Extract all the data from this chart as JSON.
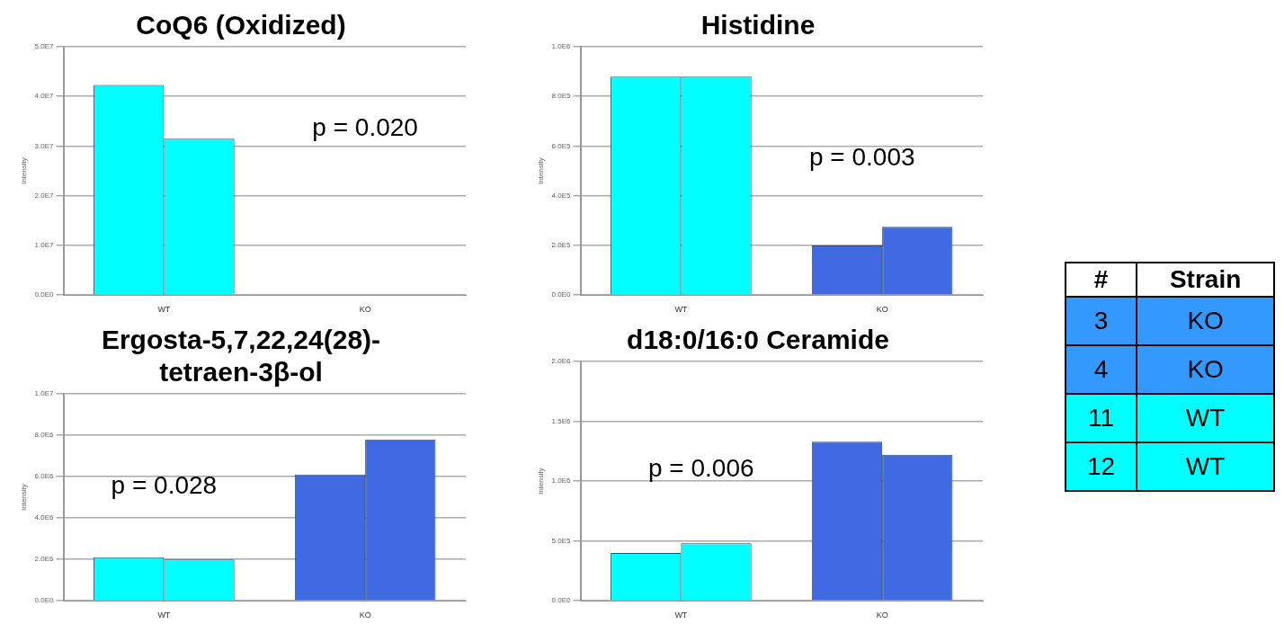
{
  "chart_data": [
    {
      "type": "bar",
      "title": "CoQ6 (Oxidized)",
      "ylabel": "Intensity",
      "categories": [
        "WT",
        "KO"
      ],
      "series": [
        {
          "colors": [
            "#00ffff",
            "#4169e1"
          ],
          "values": [
            42300000.0,
            0
          ]
        },
        {
          "colors": [
            "#00ffff",
            "#4169e1"
          ],
          "values": [
            31500000.0,
            0
          ]
        }
      ],
      "ylim": [
        0,
        50000000.0
      ],
      "yticks": [
        {
          "value": 0,
          "label": "0.0E0"
        },
        {
          "value": 10000000.0,
          "label": "1.0E7"
        },
        {
          "value": 20000000.0,
          "label": "2.0E7"
        },
        {
          "value": 30000000.0,
          "label": "3.0E7"
        },
        {
          "value": 40000000.0,
          "label": "4.0E7"
        },
        {
          "value": 50000000.0,
          "label": "5.0E7"
        }
      ],
      "grid": "y",
      "legend": false,
      "annotations": [
        "p = 0.020"
      ]
    },
    {
      "type": "bar",
      "title": "Histidine",
      "ylabel": "Intensity",
      "categories": [
        "WT",
        "KO"
      ],
      "series": [
        {
          "colors": [
            "#00ffff",
            "#4169e1"
          ],
          "values": [
            880000.0,
            200000.0
          ]
        },
        {
          "colors": [
            "#00ffff",
            "#4169e1"
          ],
          "values": [
            880000.0,
            275000.0
          ]
        }
      ],
      "ylim": [
        0,
        1000000.0
      ],
      "yticks": [
        {
          "value": 0,
          "label": "0.0E0"
        },
        {
          "value": 200000.0,
          "label": "2.0E5"
        },
        {
          "value": 400000.0,
          "label": "4.0E5"
        },
        {
          "value": 600000.0,
          "label": "6.0E5"
        },
        {
          "value": 800000.0,
          "label": "8.0E5"
        },
        {
          "value": 1000000.0,
          "label": "1.0E6"
        }
      ],
      "grid": "y",
      "legend": false,
      "annotations": [
        "p = 0.003"
      ]
    },
    {
      "type": "bar",
      "title": "Ergosta-5,7,22,24(28)-tetraen-3β-ol",
      "ylabel": "Intensity",
      "categories": [
        "WT",
        "KO"
      ],
      "series": [
        {
          "colors": [
            "#00ffff",
            "#4169e1"
          ],
          "values": [
            2100000.0,
            6100000.0
          ]
        },
        {
          "colors": [
            "#00ffff",
            "#4169e1"
          ],
          "values": [
            2000000.0,
            7800000.0
          ]
        }
      ],
      "ylim": [
        0,
        10000000.0
      ],
      "yticks": [
        {
          "value": 0,
          "label": "0.0E0"
        },
        {
          "value": 2000000.0,
          "label": "2.0E6"
        },
        {
          "value": 4000000.0,
          "label": "4.0E6"
        },
        {
          "value": 6000000.0,
          "label": "6.0E6"
        },
        {
          "value": 8000000.0,
          "label": "8.0E6"
        },
        {
          "value": 10000000.0,
          "label": "1.0E7"
        }
      ],
      "grid": "y",
      "legend": false,
      "annotations": [
        "p = 0.028"
      ]
    },
    {
      "type": "bar",
      "title": "d18:0/16:0 Ceramide",
      "ylabel": "Intensity",
      "categories": [
        "WT",
        "KO"
      ],
      "series": [
        {
          "colors": [
            "#00ffff",
            "#4169e1"
          ],
          "values": [
            400000.0,
            1330000.0
          ]
        },
        {
          "colors": [
            "#00ffff",
            "#4169e1"
          ],
          "values": [
            480000.0,
            1220000.0
          ]
        }
      ],
      "ylim": [
        0,
        2000000.0
      ],
      "yticks": [
        {
          "value": 0,
          "label": "0.0E0"
        },
        {
          "value": 500000.0,
          "label": "5.0E5"
        },
        {
          "value": 1000000.0,
          "label": "1.0E6"
        },
        {
          "value": 1500000.0,
          "label": "1.5E6"
        },
        {
          "value": 2000000.0,
          "label": "2.0E6"
        }
      ],
      "grid": "y",
      "legend": false,
      "annotations": [
        "p = 0.006"
      ]
    },
    {
      "type": "other",
      "categories": [
        "#",
        "Strain"
      ],
      "annotations": [
        "3",
        "KO",
        "4",
        "KO",
        "11",
        "WT",
        "12",
        "WT"
      ],
      "colors": [
        "#ffffff",
        "#3399ff",
        "#3399ff",
        "#00ffff",
        "#00ffff"
      ]
    }
  ]
}
